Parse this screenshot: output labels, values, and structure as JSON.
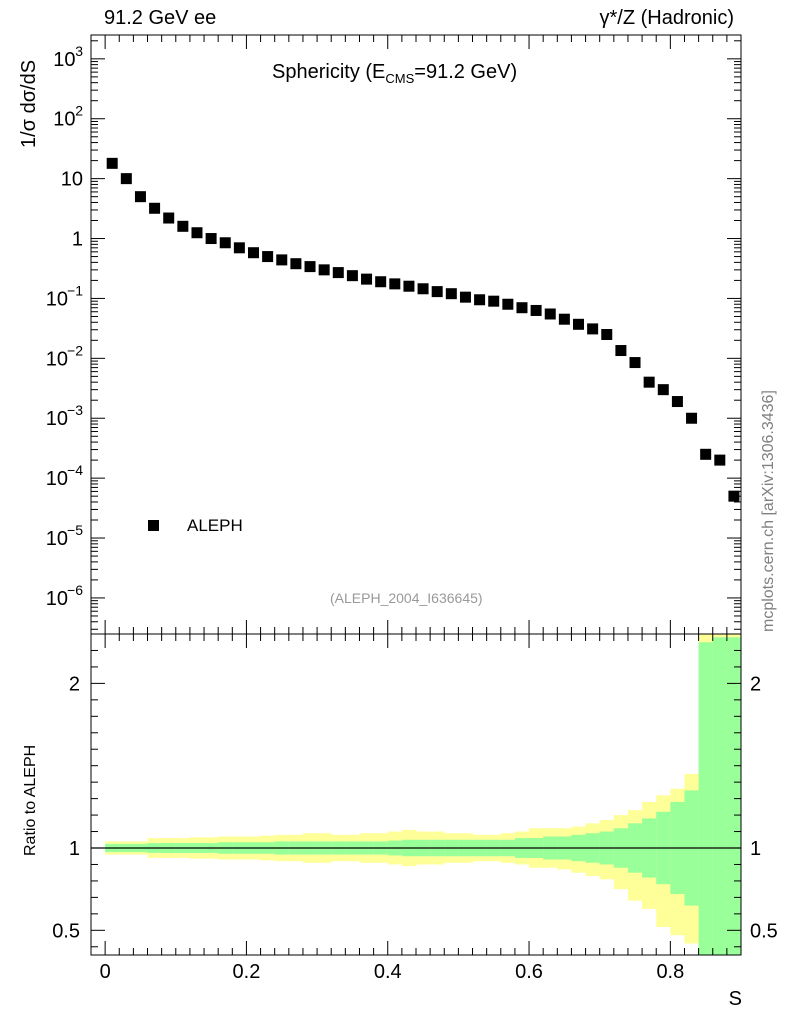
{
  "header": {
    "left": "91.2 GeV ee",
    "right": "γ*/Z (Hadronic)",
    "credit": "mcplots.cern.ch [arXiv:1306.3436]"
  },
  "chart_data": {
    "type": "scatter",
    "title_main": "Sphericity (E",
    "title_sub": "CMS",
    "title_rest": "=91.2 GeV)",
    "analysis_label": "(ALEPH_2004_I636645)",
    "xlabel": "S",
    "ylabel_top": "1/σ  dσ/dS",
    "ylabel_bottom": "Ratio to ALEPH",
    "xlim": [
      -0.02,
      0.9
    ],
    "top_ylog_lim": [
      2.5e-07,
      2500.0
    ],
    "bottom_ylim": [
      0.35,
      2.3
    ],
    "x_ticks": [
      "0",
      "0.2",
      "0.4",
      "0.6",
      "0.8"
    ],
    "x_tick_values": [
      0,
      0.2,
      0.4,
      0.6,
      0.8
    ],
    "top_y_ticks": [
      {
        "value": 1000,
        "base": "10",
        "exp": "3"
      },
      {
        "value": 100,
        "base": "10",
        "exp": "2"
      },
      {
        "value": 10,
        "base": "10",
        "exp": ""
      },
      {
        "value": 1,
        "base": "1",
        "exp": ""
      },
      {
        "value": 0.1,
        "base": "10",
        "exp": "−1"
      },
      {
        "value": 0.01,
        "base": "10",
        "exp": "−2"
      },
      {
        "value": 0.001,
        "base": "10",
        "exp": "−3"
      },
      {
        "value": 0.0001,
        "base": "10",
        "exp": "−4"
      },
      {
        "value": 1e-05,
        "base": "10",
        "exp": "−5"
      },
      {
        "value": 1e-06,
        "base": "10",
        "exp": "−6"
      }
    ],
    "bottom_y_ticks": [
      {
        "value": 2,
        "label": "2"
      },
      {
        "value": 1,
        "label": "1"
      },
      {
        "value": 0.5,
        "label": "0.5"
      }
    ],
    "series": [
      {
        "name": "ALEPH",
        "x": [
          0.01,
          0.03,
          0.05,
          0.07,
          0.09,
          0.11,
          0.13,
          0.15,
          0.17,
          0.19,
          0.21,
          0.23,
          0.25,
          0.27,
          0.29,
          0.31,
          0.33,
          0.35,
          0.37,
          0.39,
          0.41,
          0.43,
          0.45,
          0.47,
          0.49,
          0.51,
          0.53,
          0.55,
          0.57,
          0.59,
          0.61,
          0.63,
          0.65,
          0.67,
          0.69,
          0.71,
          0.73,
          0.75,
          0.77,
          0.79,
          0.81,
          0.83,
          0.85,
          0.87,
          0.89
        ],
        "y": [
          18,
          10,
          5,
          3.2,
          2.2,
          1.6,
          1.25,
          1.0,
          0.85,
          0.7,
          0.58,
          0.5,
          0.44,
          0.38,
          0.34,
          0.3,
          0.27,
          0.24,
          0.21,
          0.19,
          0.175,
          0.16,
          0.145,
          0.13,
          0.12,
          0.105,
          0.095,
          0.09,
          0.08,
          0.07,
          0.063,
          0.055,
          0.045,
          0.037,
          0.031,
          0.025,
          0.0135,
          0.0085,
          0.004,
          0.003,
          0.0019,
          0.001,
          0.00025,
          0.0002,
          5e-05
        ]
      }
    ],
    "ratio_bins": {
      "edges": [
        0,
        0.02,
        0.04,
        0.06,
        0.08,
        0.1,
        0.12,
        0.14,
        0.16,
        0.18,
        0.2,
        0.22,
        0.24,
        0.26,
        0.28,
        0.3,
        0.32,
        0.34,
        0.36,
        0.38,
        0.4,
        0.42,
        0.44,
        0.46,
        0.48,
        0.5,
        0.52,
        0.54,
        0.56,
        0.58,
        0.6,
        0.62,
        0.64,
        0.66,
        0.68,
        0.7,
        0.72,
        0.74,
        0.76,
        0.78,
        0.8,
        0.82,
        0.84,
        0.86,
        0.88,
        0.9
      ],
      "inner_up": [
        1.025,
        1.025,
        1.025,
        1.03,
        1.03,
        1.03,
        1.03,
        1.03,
        1.035,
        1.035,
        1.035,
        1.035,
        1.04,
        1.04,
        1.04,
        1.04,
        1.04,
        1.04,
        1.04,
        1.04,
        1.045,
        1.05,
        1.05,
        1.05,
        1.05,
        1.05,
        1.05,
        1.05,
        1.05,
        1.06,
        1.06,
        1.07,
        1.07,
        1.08,
        1.09,
        1.1,
        1.12,
        1.15,
        1.18,
        1.22,
        1.28,
        1.35,
        2.25,
        2.28,
        2.28
      ],
      "inner_down": [
        0.975,
        0.975,
        0.975,
        0.97,
        0.97,
        0.97,
        0.97,
        0.97,
        0.965,
        0.965,
        0.965,
        0.965,
        0.96,
        0.96,
        0.96,
        0.96,
        0.96,
        0.96,
        0.96,
        0.96,
        0.955,
        0.95,
        0.95,
        0.95,
        0.95,
        0.95,
        0.95,
        0.95,
        0.95,
        0.94,
        0.94,
        0.93,
        0.93,
        0.92,
        0.91,
        0.9,
        0.88,
        0.85,
        0.82,
        0.78,
        0.72,
        0.65,
        0.35,
        0.35,
        0.35
      ],
      "outer_up": [
        1.04,
        1.04,
        1.04,
        1.06,
        1.06,
        1.06,
        1.065,
        1.065,
        1.07,
        1.07,
        1.07,
        1.075,
        1.08,
        1.08,
        1.09,
        1.09,
        1.08,
        1.08,
        1.09,
        1.09,
        1.1,
        1.11,
        1.1,
        1.1,
        1.09,
        1.09,
        1.08,
        1.08,
        1.09,
        1.1,
        1.12,
        1.12,
        1.12,
        1.13,
        1.15,
        1.17,
        1.2,
        1.23,
        1.28,
        1.32,
        1.36,
        1.45,
        2.3,
        2.3,
        2.3
      ],
      "outer_down": [
        0.96,
        0.96,
        0.96,
        0.94,
        0.94,
        0.94,
        0.935,
        0.935,
        0.93,
        0.93,
        0.93,
        0.925,
        0.92,
        0.92,
        0.91,
        0.91,
        0.92,
        0.92,
        0.91,
        0.91,
        0.9,
        0.89,
        0.9,
        0.9,
        0.91,
        0.91,
        0.92,
        0.92,
        0.91,
        0.9,
        0.88,
        0.88,
        0.87,
        0.85,
        0.83,
        0.81,
        0.75,
        0.68,
        0.63,
        0.52,
        0.47,
        0.42,
        0.35,
        0.35,
        0.35
      ]
    },
    "colors": {
      "inner_band": "#99ff99",
      "outer_band": "#ffff99",
      "marker": "#000000",
      "frame": "#000000",
      "ref_line": "#000000"
    }
  }
}
